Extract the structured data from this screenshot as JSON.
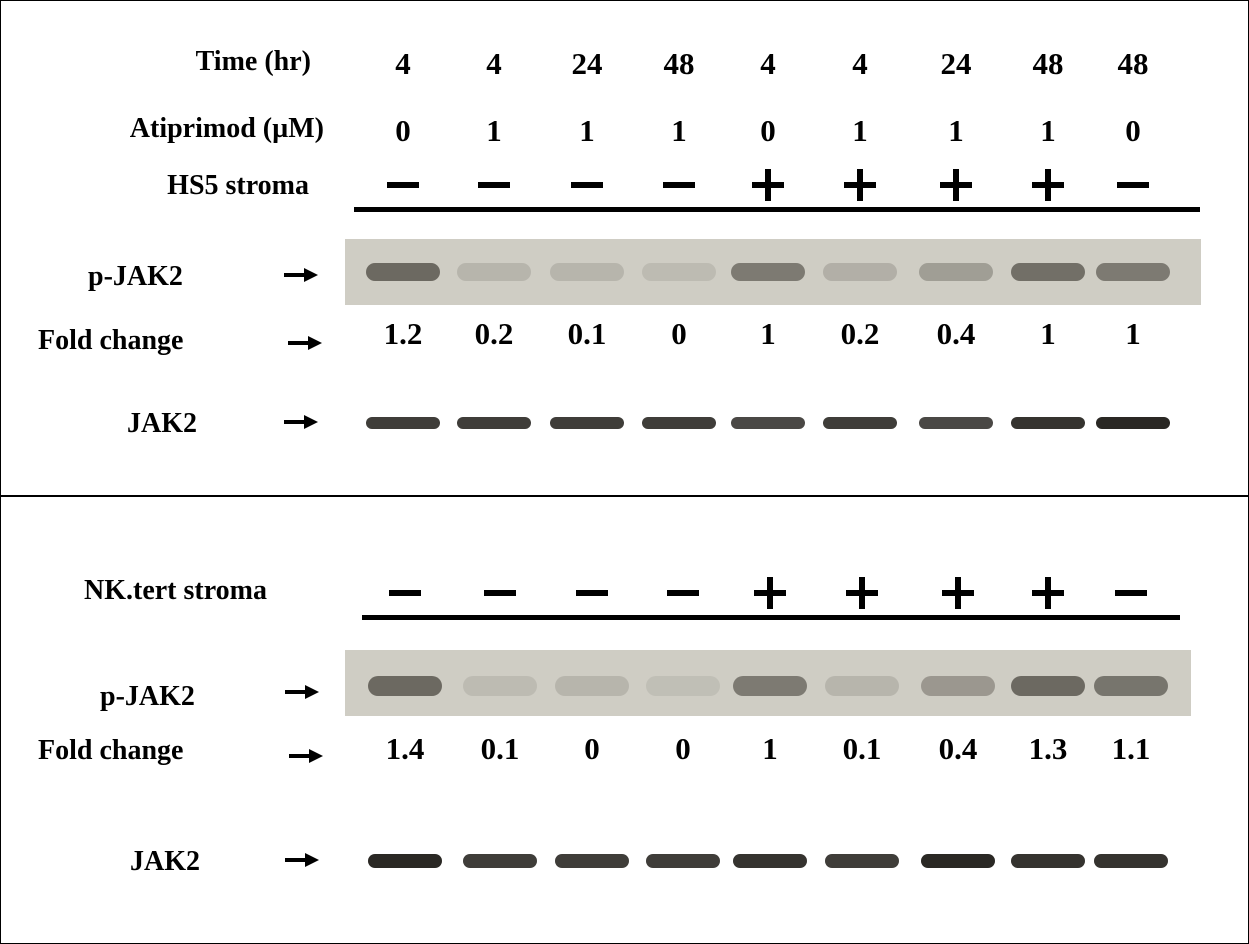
{
  "panel_top": {
    "row_labels": {
      "time": "Time (hr)",
      "atiprimod": "Atiprimod (µM)",
      "stroma": "HS5 stroma",
      "pjak2": "p-JAK2",
      "fold": "Fold change",
      "jak2": "JAK2"
    },
    "time_values": [
      "4",
      "4",
      "24",
      "48",
      "4",
      "4",
      "24",
      "48",
      "48"
    ],
    "atiprimod_values": [
      "0",
      "1",
      "1",
      "1",
      "0",
      "1",
      "1",
      "1",
      "0"
    ],
    "stroma_signs": [
      "minus",
      "minus",
      "minus",
      "minus",
      "plus",
      "plus",
      "plus",
      "plus",
      "minus"
    ],
    "fold_values": [
      "1.2",
      "0.2",
      "0.1",
      "0",
      "1",
      "0.2",
      "0.4",
      "1",
      "1"
    ],
    "pjak2_intensity": [
      0.85,
      0.2,
      0.2,
      0.15,
      0.7,
      0.25,
      0.4,
      0.8,
      0.7
    ],
    "jak2_intensity": [
      0.9,
      0.9,
      0.9,
      0.9,
      0.85,
      0.9,
      0.85,
      0.95,
      1.0
    ]
  },
  "panel_bottom": {
    "row_labels": {
      "stroma": "NK.tert stroma",
      "pjak2": "p-JAK2",
      "fold": "Fold change",
      "jak2": "JAK2"
    },
    "stroma_signs": [
      "minus",
      "minus",
      "minus",
      "minus",
      "plus",
      "plus",
      "plus",
      "plus",
      "minus"
    ],
    "fold_values": [
      "1.4",
      "0.1",
      "0",
      "0",
      "1",
      "0.1",
      "0.4",
      "1.3",
      "1.1"
    ],
    "pjak2_intensity": [
      0.85,
      0.15,
      0.2,
      0.12,
      0.7,
      0.2,
      0.45,
      0.85,
      0.75
    ],
    "jak2_intensity": [
      1.0,
      0.9,
      0.9,
      0.9,
      0.95,
      0.9,
      1.0,
      0.95,
      0.95
    ]
  },
  "colors": {
    "gel_background": "#cfcdc4",
    "band": "#2a2824",
    "ink": "#000000"
  }
}
